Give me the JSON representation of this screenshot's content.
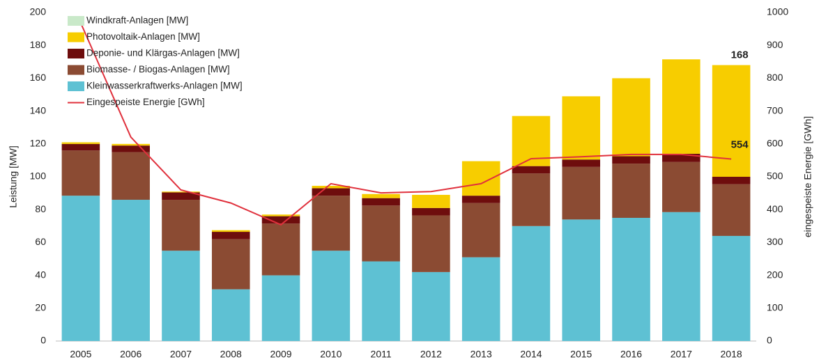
{
  "chart_data": {
    "type": "bar",
    "stacked": true,
    "categories": [
      "2005",
      "2006",
      "2007",
      "2008",
      "2009",
      "2010",
      "2011",
      "2012",
      "2013",
      "2014",
      "2015",
      "2016",
      "2017",
      "2018"
    ],
    "ylabel": "Leistung [MW]",
    "y2label": "eingespeiste Energie [GWh]",
    "ylim": [
      0,
      200
    ],
    "yticks": [
      0,
      20,
      40,
      60,
      80,
      100,
      120,
      140,
      160,
      180,
      200
    ],
    "y2lim": [
      0,
      1000
    ],
    "y2ticks": [
      0,
      100,
      200,
      300,
      400,
      500,
      600,
      700,
      800,
      900,
      1000
    ],
    "legend": "upper left",
    "series": [
      {
        "name": "Kleinwasserkraftwerks-Anlagen [MW]",
        "color": "#5ec1d3",
        "values": [
          88.5,
          86,
          55,
          31.5,
          40,
          55,
          48.5,
          42,
          51,
          70,
          74,
          75,
          78.5,
          64
        ]
      },
      {
        "name": "Biomasse- / Biogas-Anlagen [MW]",
        "color": "#8b4b33",
        "values": [
          27.5,
          29,
          31,
          30.5,
          31.5,
          33.5,
          34,
          34.5,
          33,
          32,
          32,
          33,
          30.5,
          31.5
        ]
      },
      {
        "name": "Deponie- und Klärgas-Anlagen [MW]",
        "color": "#6e0d0d",
        "values": [
          4,
          4,
          4.5,
          4.5,
          4.5,
          4.5,
          4.5,
          4.5,
          4.5,
          4.5,
          4.5,
          4.5,
          5,
          4.5
        ]
      },
      {
        "name": "Photovoltaik-Anlagen [MW]",
        "color": "#f7cd00",
        "values": [
          1,
          1,
          0.5,
          1,
          1,
          1.5,
          2.5,
          8,
          21,
          30.5,
          38.5,
          47.5,
          57.5,
          68
        ]
      },
      {
        "name": "Windkraft-Anlagen [MW]",
        "color": "#c9e9c9",
        "values": [
          0,
          0,
          0,
          0,
          0,
          0,
          0,
          0,
          0,
          0,
          0,
          0,
          0,
          0
        ]
      },
      {
        "name": "Eingespeiste Energie [GWh]",
        "type": "line",
        "axis": "y2",
        "color": "#e0303c",
        "values": [
          968,
          621,
          460,
          420,
          354,
          479,
          451,
          455,
          479,
          555,
          561,
          568,
          568,
          554
        ],
        "value_labels": [
          null,
          null,
          null,
          null,
          null,
          null,
          null,
          null,
          null,
          null,
          null,
          null,
          null,
          "554"
        ]
      }
    ],
    "annotations": [
      {
        "label": "168",
        "value": 168
      }
    ]
  }
}
